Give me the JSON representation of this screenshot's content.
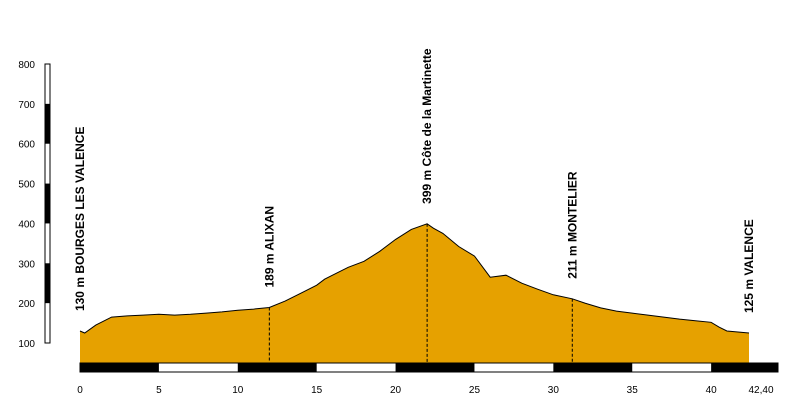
{
  "chart_data": {
    "type": "area",
    "title": "",
    "xlabel": "",
    "ylabel": "",
    "xlim": [
      0,
      42.4
    ],
    "ylim": [
      100,
      800
    ],
    "y_ticks": [
      "100",
      "200",
      "300",
      "400",
      "500",
      "600",
      "700",
      "800"
    ],
    "x_ticks": [
      "0",
      "5",
      "10",
      "15",
      "20",
      "25",
      "30",
      "35",
      "40",
      "42,40"
    ],
    "fill_color": "#e6a100",
    "profile": {
      "x": [
        0,
        0.3,
        1,
        2,
        3,
        4,
        5,
        6,
        7,
        8,
        9,
        10,
        11,
        12,
        13,
        14,
        15,
        15.5,
        16,
        17,
        18,
        19,
        20,
        21,
        22,
        22.4,
        23,
        24,
        25,
        26,
        27,
        28,
        29,
        30,
        31.2,
        32,
        33,
        34,
        35,
        36,
        37,
        38,
        39,
        40,
        40.5,
        41,
        42.4
      ],
      "y": [
        130,
        125,
        145,
        165,
        168,
        170,
        172,
        170,
        172,
        175,
        178,
        182,
        185,
        189,
        205,
        225,
        245,
        260,
        270,
        290,
        305,
        330,
        360,
        385,
        399,
        388,
        375,
        342,
        318,
        265,
        270,
        250,
        235,
        221,
        211,
        200,
        188,
        180,
        175,
        170,
        165,
        160,
        156,
        152,
        140,
        130,
        125
      ]
    },
    "markers": [
      {
        "km": 0,
        "alt": 130,
        "label": "130 m BOURGES LES VALENCE",
        "dashed": false
      },
      {
        "km": 12,
        "alt": 189,
        "label": "189 m ALIXAN",
        "dashed": true
      },
      {
        "km": 22,
        "alt": 399,
        "label": "399 m Côte de la Martinette",
        "dashed": true
      },
      {
        "km": 31.2,
        "alt": 211,
        "label": "211 m MONTELIER",
        "dashed": true
      },
      {
        "km": 42.4,
        "alt": 125,
        "label": "125 m VALENCE",
        "dashed": false
      }
    ]
  }
}
